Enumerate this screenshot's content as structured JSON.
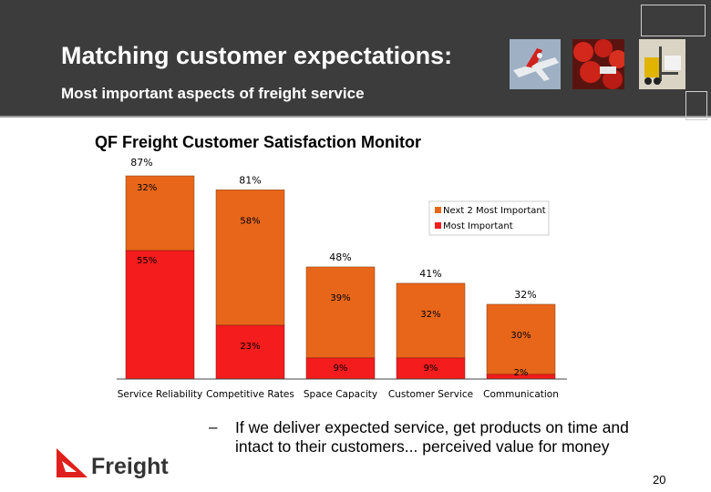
{
  "slide": {
    "title": "Matching customer expectations:",
    "subtitle": "Most important aspects of freight service",
    "chart_heading": "QF Freight Customer Satisfaction Monitor",
    "bullet_dash": "–",
    "bullet_text": "If we deliver expected service, get products on time and intact to their customers... perceived value for money",
    "logo_text": "Freight",
    "page_number": "20"
  },
  "colors": {
    "header_bg": "#3c3c3c",
    "most_important": "#f41c1c",
    "next_2": "#e8661a"
  },
  "icons": [
    "qantas-tail-logo-icon",
    "aircraft-photo",
    "tomatoes-photo",
    "forklift-photo"
  ],
  "chart_data": {
    "type": "bar",
    "stacked": true,
    "categories": [
      "Service Reliability",
      "Competitive Rates",
      "Space Capacity",
      "Customer Service",
      "Communication"
    ],
    "series": [
      {
        "name": "Most Important",
        "values": [
          55,
          23,
          9,
          9,
          2
        ],
        "labels": [
          "55%",
          "23%",
          "9%",
          "9%",
          "2%"
        ],
        "color": "#f41c1c"
      },
      {
        "name": "Next 2 Most Important",
        "values": [
          32,
          58,
          39,
          32,
          30
        ],
        "labels": [
          "32%",
          "58%",
          "39%",
          "32%",
          "30%"
        ],
        "color": "#e8661a"
      }
    ],
    "totals": [
      "87%",
      "81%",
      "48%",
      "41%",
      "32%"
    ],
    "ylim": [
      0,
      87
    ],
    "grid": false,
    "legend_position": "top-right"
  }
}
